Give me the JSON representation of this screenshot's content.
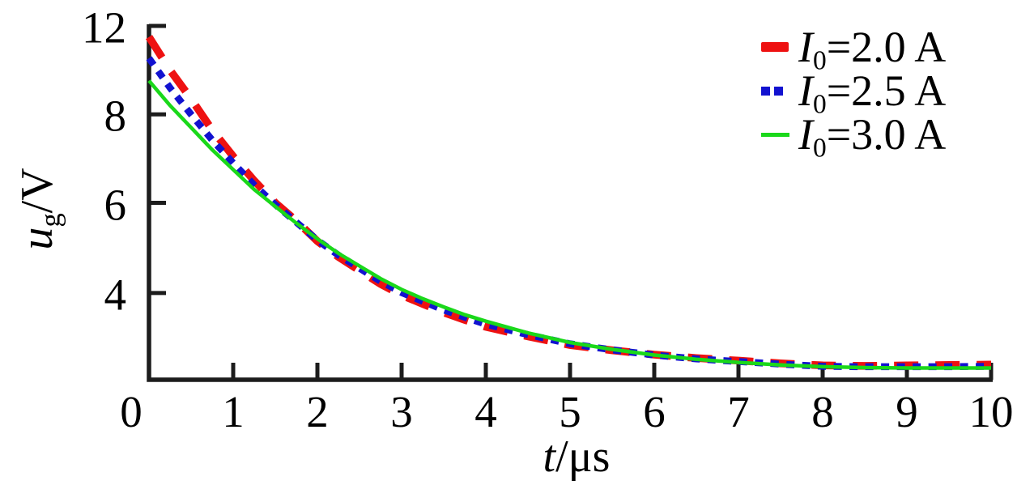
{
  "figure": {
    "background": "#ffffff",
    "axis_color": "#1c1c1c",
    "text_color": "#000000"
  },
  "chart_data": {
    "type": "line",
    "title": "",
    "xlabel": {
      "var": "t",
      "unit": "/μs"
    },
    "ylabel": {
      "var": "u",
      "sub": "g",
      "unit": "/V"
    },
    "x_ticks": [
      "0",
      "1",
      "2",
      "3",
      "4",
      "5",
      "6",
      "7",
      "8",
      "9",
      "10"
    ],
    "x_range": [
      0,
      10
    ],
    "y_tick_labels": [
      "12",
      "8",
      "6",
      "4"
    ],
    "y_tick_values": [
      12,
      8,
      6,
      4
    ],
    "y_axis_anchors": [
      [
        12,
        0.0
      ],
      [
        8,
        0.25
      ],
      [
        6,
        0.5
      ],
      [
        4,
        0.755
      ],
      [
        2,
        1.0
      ]
    ],
    "grid": false,
    "legend_position": "top-right",
    "series": [
      {
        "name": "I0=2.0 A",
        "label_var": "I",
        "label_sub": "0",
        "label_rest": "=2.0 A",
        "color": "#ee1111",
        "style": "dashed",
        "width": 9.5,
        "dash": [
          30,
          21
        ],
        "points": [
          [
            0,
            11.5
          ],
          [
            0.25,
            10.0
          ],
          [
            0.5,
            8.7
          ],
          [
            0.75,
            7.65
          ],
          [
            1,
            7.05
          ],
          [
            1.25,
            6.5
          ],
          [
            1.5,
            6.0
          ],
          [
            1.75,
            5.6
          ],
          [
            2,
            5.15
          ],
          [
            2.25,
            4.8
          ],
          [
            2.5,
            4.5
          ],
          [
            2.75,
            4.2
          ],
          [
            3,
            3.95
          ],
          [
            3.25,
            3.75
          ],
          [
            3.5,
            3.55
          ],
          [
            3.75,
            3.38
          ],
          [
            4,
            3.22
          ],
          [
            4.5,
            3.0
          ],
          [
            5,
            2.8
          ],
          [
            5.5,
            2.68
          ],
          [
            6,
            2.58
          ],
          [
            6.5,
            2.5
          ],
          [
            7,
            2.44
          ],
          [
            7.5,
            2.38
          ],
          [
            8,
            2.33
          ],
          [
            8.5,
            2.32
          ],
          [
            9,
            2.33
          ],
          [
            9.5,
            2.34
          ],
          [
            10,
            2.35
          ]
        ]
      },
      {
        "name": "I0=2.5 A",
        "label_var": "I",
        "label_sub": "0",
        "label_rest": "=2.5 A",
        "color": "#1212d0",
        "style": "dotted",
        "width": 8.5,
        "dash": [
          10,
          9.5
        ],
        "points": [
          [
            0,
            10.54
          ],
          [
            0.25,
            9.2
          ],
          [
            0.5,
            8.0
          ],
          [
            0.75,
            7.42
          ],
          [
            1,
            6.9
          ],
          [
            1.25,
            6.4
          ],
          [
            1.5,
            5.96
          ],
          [
            1.75,
            5.57
          ],
          [
            2,
            5.17
          ],
          [
            2.25,
            4.84
          ],
          [
            2.5,
            4.55
          ],
          [
            2.75,
            4.26
          ],
          [
            3,
            4.01
          ],
          [
            3.25,
            3.81
          ],
          [
            3.5,
            3.61
          ],
          [
            3.75,
            3.44
          ],
          [
            4,
            3.28
          ],
          [
            4.5,
            3.04
          ],
          [
            5,
            2.83
          ],
          [
            5.5,
            2.69
          ],
          [
            6,
            2.57
          ],
          [
            6.5,
            2.48
          ],
          [
            7,
            2.42
          ],
          [
            7.5,
            2.36
          ],
          [
            8,
            2.31
          ],
          [
            8.5,
            2.3
          ],
          [
            9,
            2.3
          ],
          [
            9.5,
            2.3
          ],
          [
            10,
            2.31
          ]
        ]
      },
      {
        "name": "I0=3.0 A",
        "label_var": "I",
        "label_sub": "0",
        "label_rest": "=3.0 A",
        "color": "#1ad81a",
        "style": "solid",
        "width": 4.5,
        "dash": [],
        "points": [
          [
            0,
            9.52
          ],
          [
            0.25,
            8.4
          ],
          [
            0.5,
            7.7
          ],
          [
            0.75,
            7.2
          ],
          [
            1,
            6.75
          ],
          [
            1.25,
            6.3
          ],
          [
            1.5,
            5.92
          ],
          [
            1.75,
            5.55
          ],
          [
            2,
            5.2
          ],
          [
            2.25,
            4.88
          ],
          [
            2.5,
            4.6
          ],
          [
            2.75,
            4.32
          ],
          [
            3,
            4.08
          ],
          [
            3.25,
            3.87
          ],
          [
            3.5,
            3.68
          ],
          [
            3.75,
            3.5
          ],
          [
            4,
            3.35
          ],
          [
            4.5,
            3.08
          ],
          [
            5,
            2.86
          ],
          [
            5.5,
            2.7
          ],
          [
            6,
            2.57
          ],
          [
            6.5,
            2.47
          ],
          [
            7,
            2.4
          ],
          [
            7.5,
            2.34
          ],
          [
            8,
            2.3
          ],
          [
            8.5,
            2.28
          ],
          [
            9,
            2.27
          ],
          [
            9.5,
            2.27
          ],
          [
            10,
            2.27
          ]
        ]
      }
    ]
  }
}
